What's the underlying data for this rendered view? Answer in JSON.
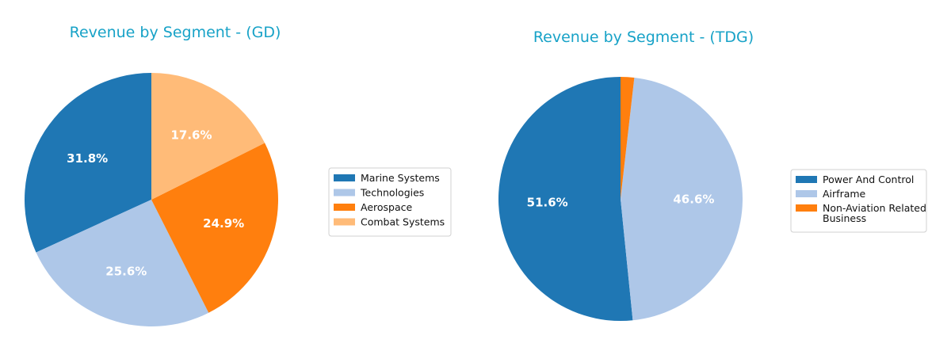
{
  "chart_data": [
    {
      "type": "pie",
      "title": "Revenue by Segment - (GD)",
      "labels": [
        "Marine Systems",
        "Technologies",
        "Aerospace",
        "Combat Systems"
      ],
      "values": [
        31.8,
        25.6,
        24.9,
        17.6
      ],
      "value_labels": [
        "31.8%",
        "25.6%",
        "24.9%",
        "17.6%"
      ],
      "colors": [
        "#1f77b4",
        "#aec7e8",
        "#ff7f0e",
        "#ffbb78"
      ],
      "start_angle_deg": 90,
      "direction": "counterclockwise",
      "legend_position": "right"
    },
    {
      "type": "pie",
      "title": "Revenue by Segment - (TDG)",
      "labels": [
        "Power And Control",
        "Airframe",
        "Non-Aviation Related\nBusiness"
      ],
      "values": [
        51.6,
        46.6,
        1.8
      ],
      "value_labels": [
        "51.6%",
        "46.6%",
        ""
      ],
      "colors": [
        "#1f77b4",
        "#aec7e8",
        "#ff7f0e"
      ],
      "start_angle_deg": 90,
      "direction": "counterclockwise",
      "legend_position": "right"
    }
  ]
}
